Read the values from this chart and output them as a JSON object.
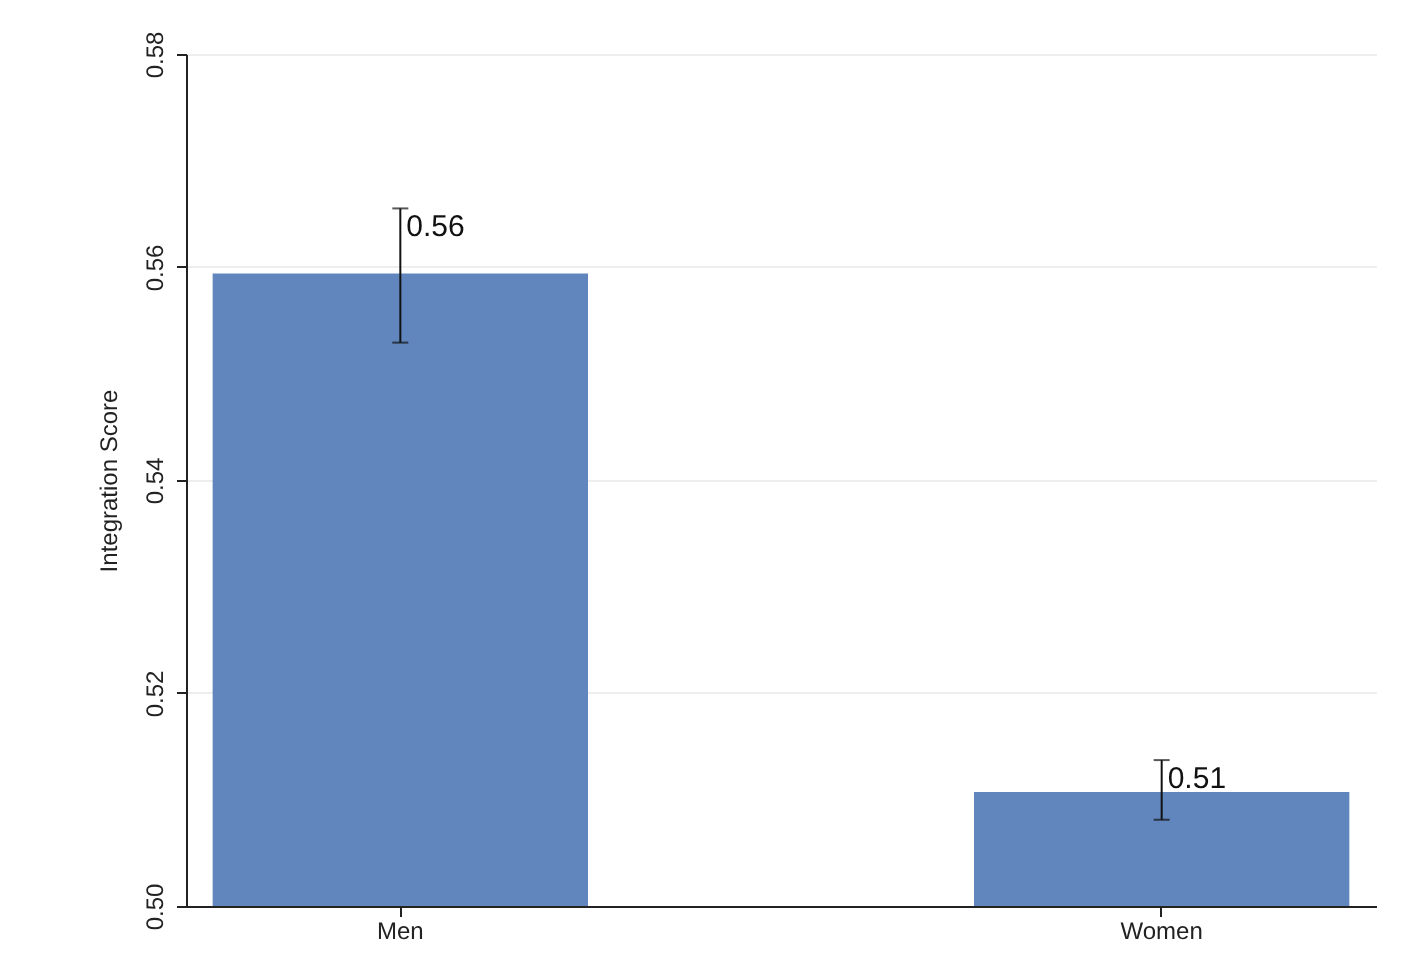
{
  "chart_data": {
    "type": "bar",
    "ylabel": "Integration Score",
    "categories": [
      "Men",
      "Women"
    ],
    "values": [
      0.5594,
      0.5107
    ],
    "color": "#6185bd",
    "errors": [
      [
        0.5529,
        0.5655
      ],
      [
        0.5081,
        0.5137
      ]
    ],
    "value_labels": [
      "0.56",
      "0.51"
    ],
    "ylim": [
      0.5,
      0.58
    ],
    "yticks": [
      {
        "value": 0.5,
        "label": "0.50"
      },
      0.52,
      0.54,
      0.56,
      0.58
    ],
    "grid": "y"
  }
}
